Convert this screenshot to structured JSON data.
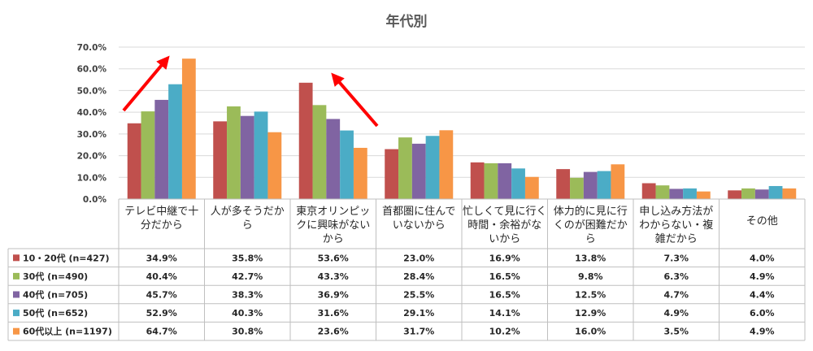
{
  "chart_data": {
    "type": "bar",
    "title": "年代別",
    "ylim": [
      0,
      70
    ],
    "yticks": [
      "0.0%",
      "10.0%",
      "20.0%",
      "30.0%",
      "40.0%",
      "50.0%",
      "60.0%",
      "70.0%"
    ],
    "categories": [
      [
        "テレビ中継で十",
        "分だから"
      ],
      [
        "人が多そうだか",
        "ら"
      ],
      [
        "東京オリンピッ",
        "クに興味がない",
        "から"
      ],
      [
        "首都圏に住んで",
        "いないから"
      ],
      [
        "忙しくて見に行く",
        "時間・余裕がな",
        "いから"
      ],
      [
        "体力的に見に行",
        "くのが困難だか",
        "ら"
      ],
      [
        "申し込み方法が",
        "わからない・複",
        "雑だから"
      ],
      [
        "その他"
      ]
    ],
    "series": [
      {
        "name": "10・20代 (n=427)",
        "color": "#C0504D",
        "values": [
          34.9,
          35.8,
          53.6,
          23.0,
          16.9,
          13.8,
          7.3,
          4.0
        ],
        "labels": [
          "34.9%",
          "35.8%",
          "53.6%",
          "23.0%",
          "16.9%",
          "13.8%",
          "7.3%",
          "4.0%"
        ]
      },
      {
        "name": "30代 (n=490)",
        "color": "#9BBB59",
        "values": [
          40.4,
          42.7,
          43.3,
          28.4,
          16.5,
          9.8,
          6.3,
          4.9
        ],
        "labels": [
          "40.4%",
          "42.7%",
          "43.3%",
          "28.4%",
          "16.5%",
          "9.8%",
          "6.3%",
          "4.9%"
        ]
      },
      {
        "name": "40代 (n=705)",
        "color": "#8064A2",
        "values": [
          45.7,
          38.3,
          36.9,
          25.5,
          16.5,
          12.5,
          4.7,
          4.4
        ],
        "labels": [
          "45.7%",
          "38.3%",
          "36.9%",
          "25.5%",
          "16.5%",
          "12.5%",
          "4.7%",
          "4.4%"
        ]
      },
      {
        "name": "50代 (n=652)",
        "color": "#4BACC6",
        "values": [
          52.9,
          40.3,
          31.6,
          29.1,
          14.1,
          12.9,
          4.9,
          6.0
        ],
        "labels": [
          "52.9%",
          "40.3%",
          "31.6%",
          "29.1%",
          "14.1%",
          "12.9%",
          "4.9%",
          "6.0%"
        ]
      },
      {
        "name": "60代以上 (n=1197)",
        "color": "#F79646",
        "values": [
          64.7,
          30.8,
          23.6,
          31.7,
          10.2,
          16.0,
          3.5,
          4.9
        ],
        "labels": [
          "64.7%",
          "30.8%",
          "23.6%",
          "31.7%",
          "10.2%",
          "16.0%",
          "3.5%",
          "4.9%"
        ]
      }
    ],
    "annotations": {
      "arrow_color": "#FF0000",
      "arrows": [
        "テレビ中継で十分だから",
        "東京オリンピックに興味がないから"
      ]
    },
    "grid": true,
    "legend": "data-table"
  }
}
